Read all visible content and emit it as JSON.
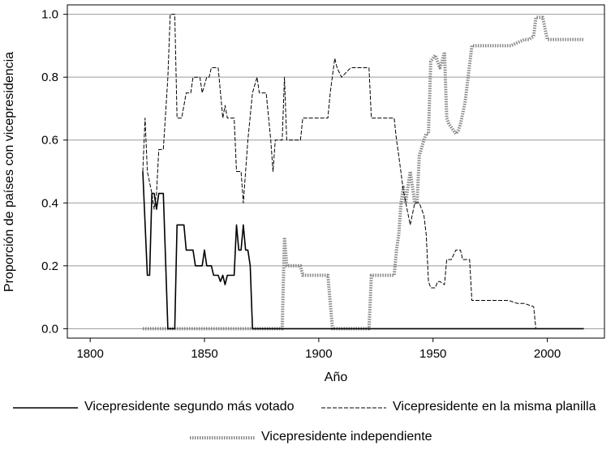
{
  "chart_data": {
    "type": "line",
    "title": "",
    "xlabel": "Año",
    "ylabel": "Proporción de países con vicepresidencia",
    "xlim": [
      1790,
      2025
    ],
    "ylim": [
      -0.03,
      1.03
    ],
    "x_ticks": [
      "1800",
      "1850",
      "1900",
      "1950",
      "2000"
    ],
    "x_tick_values": [
      1800,
      1850,
      1900,
      1950,
      2000
    ],
    "y_ticks": [
      "0.0",
      "0.2",
      "0.4",
      "0.6",
      "0.8",
      "1.0"
    ],
    "y_tick_values": [
      0.0,
      0.2,
      0.4,
      0.6,
      0.8,
      1.0
    ],
    "grid": "horizontal",
    "legend_position": "bottom",
    "series": [
      {
        "name": "Vicepresidente segundo más votado",
        "style": "solid",
        "color": "#000000",
        "points": [
          [
            1823,
            0.5
          ],
          [
            1825,
            0.17
          ],
          [
            1826,
            0.17
          ],
          [
            1827,
            0.43
          ],
          [
            1828,
            0.43
          ],
          [
            1829,
            0.38
          ],
          [
            1830,
            0.43
          ],
          [
            1832,
            0.43
          ],
          [
            1834,
            0.0
          ],
          [
            1837,
            0.0
          ],
          [
            1838,
            0.33
          ],
          [
            1841,
            0.33
          ],
          [
            1842,
            0.25
          ],
          [
            1845,
            0.25
          ],
          [
            1846,
            0.2
          ],
          [
            1849,
            0.2
          ],
          [
            1850,
            0.25
          ],
          [
            1851,
            0.2
          ],
          [
            1853,
            0.2
          ],
          [
            1854,
            0.17
          ],
          [
            1856,
            0.17
          ],
          [
            1857,
            0.15
          ],
          [
            1858,
            0.17
          ],
          [
            1859,
            0.14
          ],
          [
            1860,
            0.17
          ],
          [
            1863,
            0.17
          ],
          [
            1864,
            0.33
          ],
          [
            1865,
            0.25
          ],
          [
            1866,
            0.25
          ],
          [
            1867,
            0.33
          ],
          [
            1868,
            0.25
          ],
          [
            1869,
            0.25
          ],
          [
            1870,
            0.2
          ],
          [
            1871,
            0.0
          ],
          [
            2016,
            0.0
          ]
        ]
      },
      {
        "name": "Vicepresidente en la misma planilla",
        "style": "dashed",
        "color": "#000000",
        "points": [
          [
            1823,
            0.5
          ],
          [
            1824,
            0.67
          ],
          [
            1825,
            0.5
          ],
          [
            1827,
            0.43
          ],
          [
            1828,
            0.38
          ],
          [
            1829,
            0.43
          ],
          [
            1830,
            0.57
          ],
          [
            1832,
            0.57
          ],
          [
            1834,
            0.8
          ],
          [
            1835,
            1.0
          ],
          [
            1837,
            1.0
          ],
          [
            1838,
            0.67
          ],
          [
            1840,
            0.67
          ],
          [
            1842,
            0.75
          ],
          [
            1844,
            0.75
          ],
          [
            1845,
            0.8
          ],
          [
            1848,
            0.8
          ],
          [
            1849,
            0.75
          ],
          [
            1851,
            0.8
          ],
          [
            1852,
            0.8
          ],
          [
            1853,
            0.83
          ],
          [
            1856,
            0.83
          ],
          [
            1858,
            0.67
          ],
          [
            1859,
            0.71
          ],
          [
            1860,
            0.67
          ],
          [
            1863,
            0.67
          ],
          [
            1864,
            0.5
          ],
          [
            1866,
            0.5
          ],
          [
            1867,
            0.4
          ],
          [
            1868,
            0.5
          ],
          [
            1869,
            0.6
          ],
          [
            1871,
            0.75
          ],
          [
            1873,
            0.8
          ],
          [
            1874,
            0.75
          ],
          [
            1877,
            0.75
          ],
          [
            1879,
            0.6
          ],
          [
            1880,
            0.5
          ],
          [
            1881,
            0.6
          ],
          [
            1884,
            0.6
          ],
          [
            1885,
            0.8
          ],
          [
            1886,
            0.6
          ],
          [
            1888,
            0.6
          ],
          [
            1889,
            0.6
          ],
          [
            1892,
            0.6
          ],
          [
            1893,
            0.67
          ],
          [
            1897,
            0.67
          ],
          [
            1898,
            0.67
          ],
          [
            1904,
            0.67
          ],
          [
            1905,
            0.75
          ],
          [
            1907,
            0.86
          ],
          [
            1908,
            0.83
          ],
          [
            1910,
            0.8
          ],
          [
            1914,
            0.83
          ],
          [
            1922,
            0.83
          ],
          [
            1923,
            0.67
          ],
          [
            1925,
            0.67
          ],
          [
            1928,
            0.67
          ],
          [
            1931,
            0.67
          ],
          [
            1933,
            0.67
          ],
          [
            1934,
            0.6
          ],
          [
            1935,
            0.55
          ],
          [
            1937,
            0.44
          ],
          [
            1940,
            0.33
          ],
          [
            1942,
            0.4
          ],
          [
            1943,
            0.4
          ],
          [
            1944,
            0.4
          ],
          [
            1946,
            0.36
          ],
          [
            1947,
            0.3
          ],
          [
            1948,
            0.15
          ],
          [
            1949,
            0.13
          ],
          [
            1951,
            0.13
          ],
          [
            1952,
            0.15
          ],
          [
            1953,
            0.15
          ],
          [
            1955,
            0.14
          ],
          [
            1956,
            0.22
          ],
          [
            1958,
            0.22
          ],
          [
            1960,
            0.25
          ],
          [
            1962,
            0.25
          ],
          [
            1963,
            0.22
          ],
          [
            1966,
            0.22
          ],
          [
            1967,
            0.09
          ],
          [
            1980,
            0.09
          ],
          [
            1983,
            0.09
          ],
          [
            1987,
            0.08
          ],
          [
            1990,
            0.08
          ],
          [
            1994,
            0.07
          ],
          [
            1995,
            0.0
          ]
        ]
      },
      {
        "name": "Vicepresidente independiente",
        "style": "dotted",
        "color": "#888888",
        "points": [
          [
            1823,
            0.0
          ],
          [
            1884,
            0.0
          ],
          [
            1885,
            0.29
          ],
          [
            1886,
            0.2
          ],
          [
            1888,
            0.2
          ],
          [
            1889,
            0.2
          ],
          [
            1892,
            0.2
          ],
          [
            1893,
            0.17
          ],
          [
            1896,
            0.17
          ],
          [
            1898,
            0.17
          ],
          [
            1900,
            0.17
          ],
          [
            1904,
            0.17
          ],
          [
            1906,
            0.0
          ],
          [
            1922,
            0.0
          ],
          [
            1923,
            0.17
          ],
          [
            1925,
            0.17
          ],
          [
            1928,
            0.17
          ],
          [
            1931,
            0.17
          ],
          [
            1933,
            0.17
          ],
          [
            1934,
            0.25
          ],
          [
            1935,
            0.3
          ],
          [
            1936,
            0.4
          ],
          [
            1937,
            0.45
          ],
          [
            1938,
            0.4
          ],
          [
            1939,
            0.45
          ],
          [
            1940,
            0.5
          ],
          [
            1941,
            0.45
          ],
          [
            1942,
            0.4
          ],
          [
            1943,
            0.4
          ],
          [
            1944,
            0.55
          ],
          [
            1946,
            0.6
          ],
          [
            1947,
            0.62
          ],
          [
            1948,
            0.62
          ],
          [
            1949,
            0.85
          ],
          [
            1951,
            0.87
          ],
          [
            1953,
            0.83
          ],
          [
            1954,
            0.85
          ],
          [
            1955,
            0.88
          ],
          [
            1956,
            0.67
          ],
          [
            1957,
            0.65
          ],
          [
            1958,
            0.64
          ],
          [
            1959,
            0.63
          ],
          [
            1960,
            0.62
          ],
          [
            1961,
            0.63
          ],
          [
            1962,
            0.65
          ],
          [
            1964,
            0.72
          ],
          [
            1966,
            0.84
          ],
          [
            1967,
            0.9
          ],
          [
            1970,
            0.9
          ],
          [
            1980,
            0.9
          ],
          [
            1983,
            0.9
          ],
          [
            1984,
            0.9
          ],
          [
            1987,
            0.91
          ],
          [
            1990,
            0.92
          ],
          [
            1992,
            0.92
          ],
          [
            1994,
            0.93
          ],
          [
            1995,
            0.99
          ],
          [
            1998,
            0.99
          ],
          [
            2000,
            0.92
          ],
          [
            2016,
            0.92
          ]
        ]
      }
    ]
  }
}
